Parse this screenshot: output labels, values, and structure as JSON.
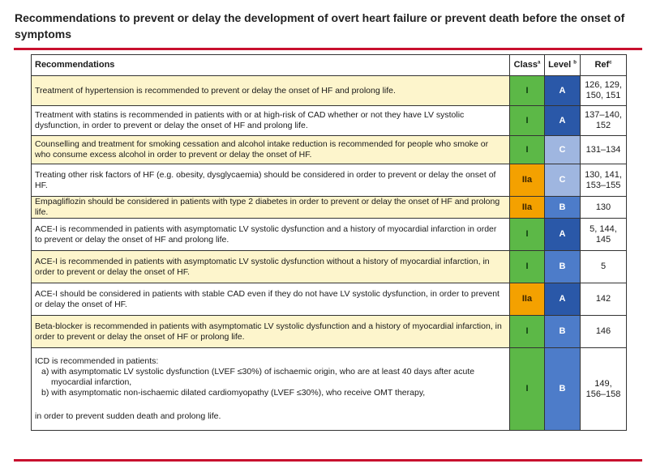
{
  "title": "Recommendations to prevent or delay the development of overt heart failure or prevent death before the onset of symptoms",
  "colors": {
    "rule": "#c8102e",
    "class_I": "#5cb847",
    "class_IIa": "#f4a100",
    "level_A": "#2a58a8",
    "level_B": "#4d7cc9",
    "level_C": "#9fb6e0",
    "row_highlight": "#fdf5cc"
  },
  "headers": {
    "recommendations": "Recommendations",
    "class": "Class",
    "class_sup": "a",
    "level": "Level",
    "level_sup": "b",
    "ref": "Ref",
    "ref_sup": "c"
  },
  "rows": [
    {
      "text": "Treatment of hypertension is recommended to prevent or delay the onset of HF and prolong life.",
      "class": "I",
      "level": "A",
      "ref_lines": [
        "126, 129,",
        "150, 151"
      ],
      "highlight": true
    },
    {
      "text": "Treatment with statins is recommended in patients with or at high-risk of CAD whether or not they have LV systolic dysfunction, in order to prevent or delay the onset of HF and prolong life.",
      "class": "I",
      "level": "A",
      "ref_lines": [
        "137–140,",
        "152"
      ],
      "highlight": false
    },
    {
      "text": "Counselling and treatment for smoking cessation and alcohol intake reduction is recommended for people who smoke or who consume excess alcohol in order to prevent or delay the onset of HF.",
      "class": "I",
      "level": "C",
      "ref_lines": [
        "131–134"
      ],
      "highlight": true
    },
    {
      "text": "Treating other risk factors of HF (e.g. obesity, dysglycaemia) should be considered in order to prevent or delay the onset of HF.",
      "class": "IIa",
      "level": "C",
      "ref_lines": [
        "130, 141,",
        "153–155"
      ],
      "highlight": false
    },
    {
      "text": "Empagliflozin should be considered in patients with type 2 diabetes in order to prevent or delay the onset of HF and prolong life.",
      "class": "IIa",
      "level": "B",
      "ref_lines": [
        "130"
      ],
      "highlight": true
    },
    {
      "text": "ACE-I is recommended in patients with asymptomatic LV systolic dysfunction and a history of myocardial infarction in order to prevent or delay the onset of HF and prolong life.",
      "class": "I",
      "level": "A",
      "ref_lines": [
        "5, 144,",
        "145"
      ],
      "highlight": false
    },
    {
      "text": "ACE-I is recommended in patients with asymptomatic LV systolic dysfunction without a history of myocardial infarction, in order to prevent or delay the onset of HF.",
      "class": "I",
      "level": "B",
      "ref_lines": [
        "5"
      ],
      "highlight": true
    },
    {
      "text": "ACE-I should be considered in patients with stable CAD even if they do not have LV systolic dysfunction, in order to prevent or delay the onset of HF.",
      "class": "IIa",
      "level": "A",
      "ref_lines": [
        "142"
      ],
      "highlight": false
    },
    {
      "text": "Beta-blocker is recommended in patients with asymptomatic LV systolic dysfunction and a history of myocardial infarction, in order to prevent or delay the onset of HF or prolong life.",
      "class": "I",
      "level": "B",
      "ref_lines": [
        "146"
      ],
      "highlight": true
    }
  ],
  "icd_row": {
    "intro": "ICD is recommended in patients:",
    "item_a_1": "a) with asymptomatic LV systolic dysfunction (LVEF ≤30%) of ischaemic origin, who are at least 40 days after acute",
    "item_a_2": "myocardial infarction,",
    "item_b": "b) with asymptomatic non-ischaemic dilated cardiomyopathy (LVEF ≤30%), who receive OMT therapy,",
    "outro": "in order to prevent sudden death and prolong life.",
    "class": "I",
    "level": "B",
    "ref_lines": [
      "149,",
      "156–158"
    ]
  }
}
